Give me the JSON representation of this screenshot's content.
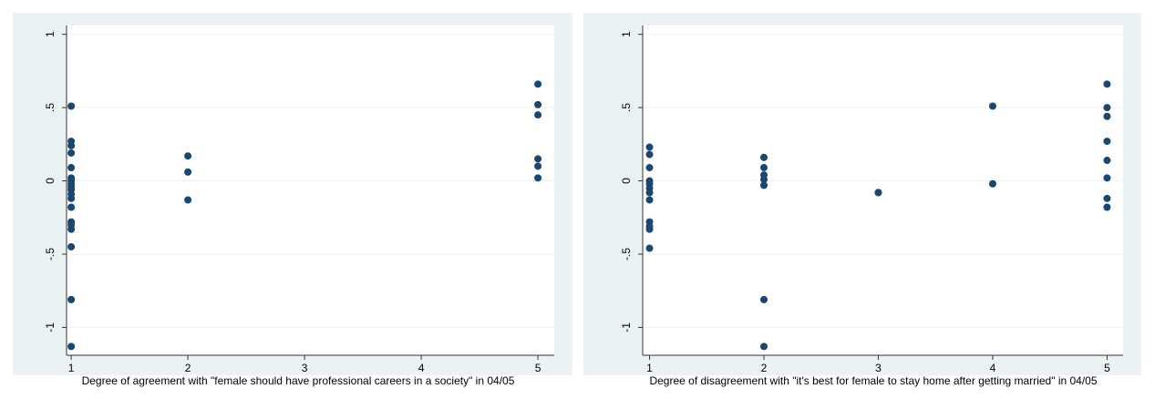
{
  "chart_data": [
    {
      "type": "scatter",
      "x_label": "Degree of agreement with \"female should have professional careers in a society\" in 04/05",
      "xlim": [
        0.96,
        5.14
      ],
      "xticks": [
        1,
        2,
        3,
        4,
        5
      ],
      "ylim": [
        -1.19,
        1.06
      ],
      "yticks": [
        -1,
        {
          "value": -0.5,
          "label": "-.5"
        },
        0,
        {
          "value": 0.5,
          "label": ".5"
        },
        1
      ],
      "grid": true,
      "series": [
        {
          "color": "#1a476f",
          "x": [
            1,
            1,
            1,
            1,
            1,
            1,
            1,
            1,
            1,
            1,
            1,
            1,
            1,
            1,
            1,
            1,
            1,
            1,
            1,
            2,
            2,
            2,
            5,
            5,
            5,
            5,
            5,
            5
          ],
          "values": [
            0.51,
            0.27,
            0.24,
            0.19,
            0.09,
            0.02,
            0,
            -0.02,
            -0.04,
            -0.06,
            -0.09,
            -0.12,
            -0.18,
            -0.28,
            -0.3,
            -0.33,
            -0.45,
            -0.81,
            -1.13,
            0.17,
            0.06,
            -0.13,
            0.66,
            0.52,
            0.45,
            0.15,
            0.1,
            0.02
          ]
        }
      ]
    },
    {
      "type": "scatter",
      "x_label": "Degree of disagreement with \"it's best for female to stay home after getting married\" in 04/05",
      "xlim": [
        0.94,
        5.14
      ],
      "xticks": [
        1,
        2,
        3,
        4,
        5
      ],
      "ylim": [
        -1.19,
        1.06
      ],
      "yticks": [
        -1,
        {
          "value": -0.5,
          "label": "-.5"
        },
        0,
        {
          "value": 0.5,
          "label": ".5"
        },
        1
      ],
      "grid": true,
      "series": [
        {
          "color": "#1a476f",
          "x": [
            1,
            1,
            1,
            1,
            1,
            1,
            1,
            1,
            1,
            1,
            1,
            1,
            2,
            2,
            2,
            2,
            2,
            2,
            2,
            3,
            3,
            4,
            4,
            5,
            5,
            5,
            5,
            5,
            5,
            5,
            5
          ],
          "values": [
            0.23,
            0.18,
            0.09,
            0,
            -0.02,
            -0.05,
            -0.08,
            -0.13,
            -0.28,
            -0.31,
            -0.33,
            -0.46,
            0.16,
            0.09,
            0.04,
            0.01,
            -0.03,
            -0.81,
            -1.13,
            -0.08,
            -0.08,
            0.51,
            -0.02,
            0.66,
            0.5,
            0.44,
            0.27,
            0.14,
            0.02,
            -0.12,
            -0.18
          ]
        }
      ]
    }
  ]
}
